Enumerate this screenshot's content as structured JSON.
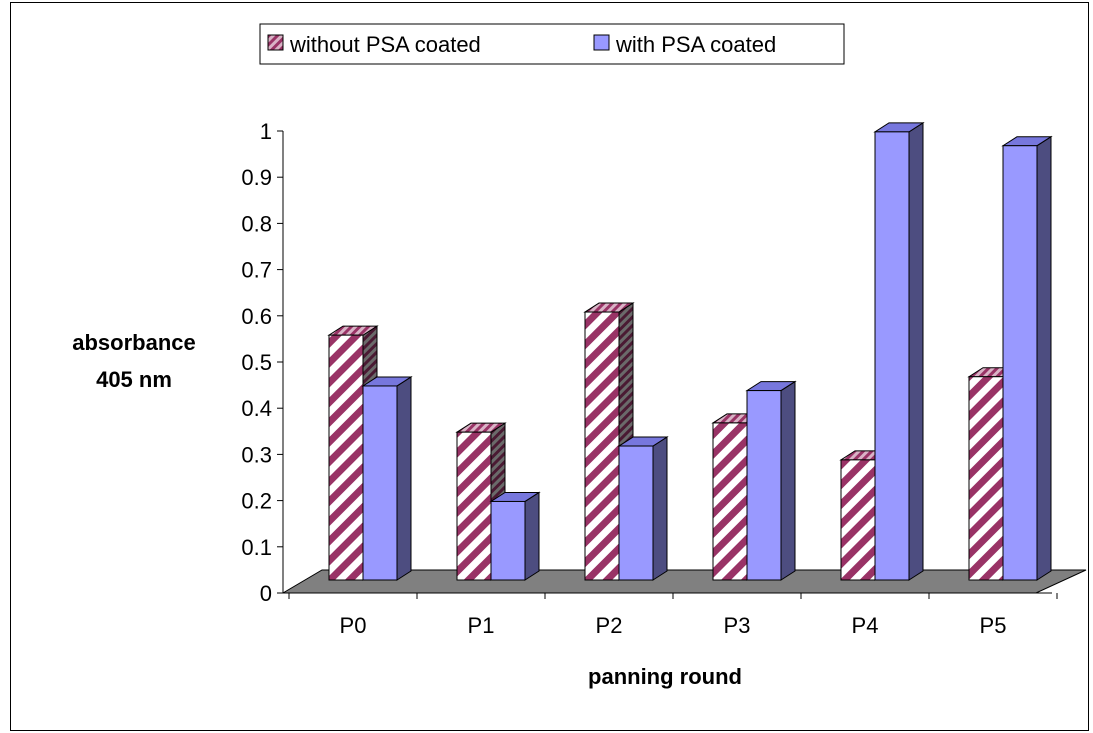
{
  "chart_data": {
    "type": "bar",
    "style": "3d-clustered",
    "categories": [
      "P0",
      "P1",
      "P2",
      "P3",
      "P4",
      "P5"
    ],
    "series": [
      {
        "name": "without PSA coated",
        "values": [
          0.53,
          0.32,
          0.58,
          0.34,
          0.26,
          0.44
        ],
        "pattern": "diagonal-stripes",
        "color": "#993366"
      },
      {
        "name": "with PSA coated",
        "values": [
          0.42,
          0.17,
          0.29,
          0.41,
          0.97,
          0.94
        ],
        "color": "#9999FF"
      }
    ],
    "xlabel": "panning round",
    "ylabel_lines": [
      "absorbance",
      "405 nm"
    ],
    "ylim": [
      0,
      1
    ],
    "yticks": [
      "0",
      "0.1",
      "0.2",
      "0.3",
      "0.4",
      "0.5",
      "0.6",
      "0.7",
      "0.8",
      "0.9",
      "1"
    ],
    "legend_position": "top-center",
    "floor_color": "#808080",
    "grid": false
  }
}
